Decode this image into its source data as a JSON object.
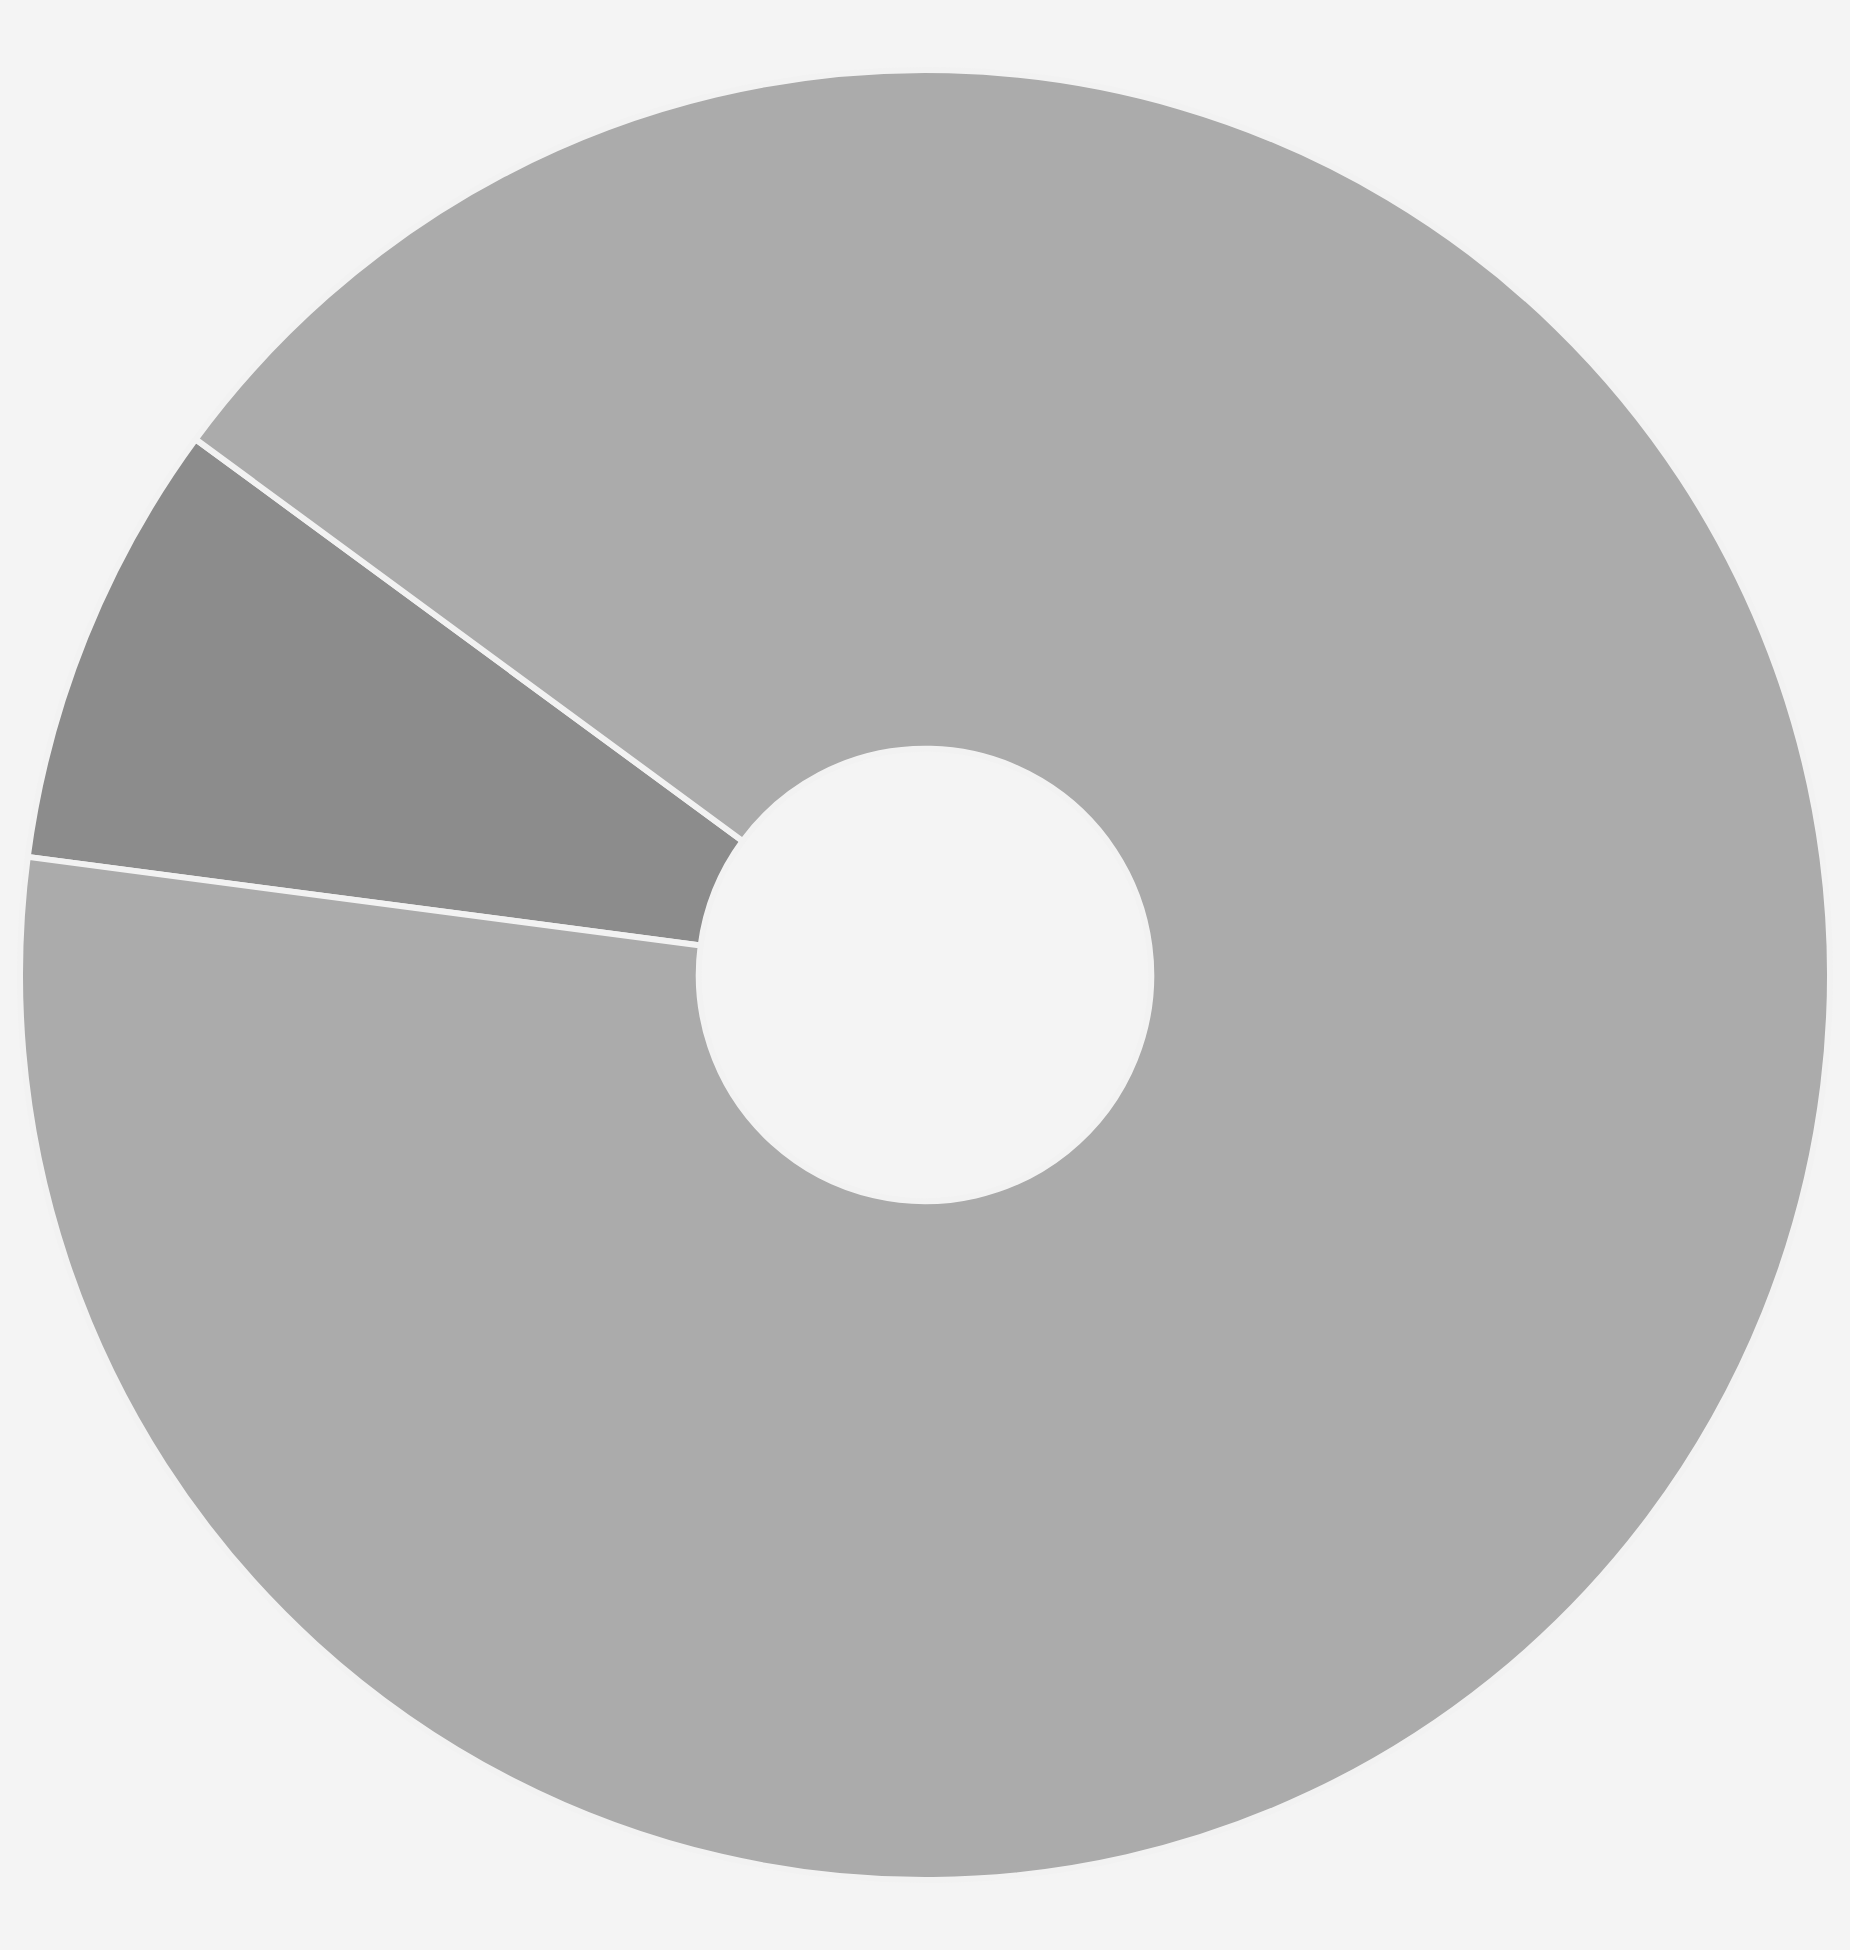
{
  "chart_data": {
    "type": "donut",
    "categories": [
      null,
      null
    ],
    "values": [
      8,
      92
    ],
    "colors": [
      "#8c8c8c",
      "#ababab"
    ],
    "legend": false
  }
}
